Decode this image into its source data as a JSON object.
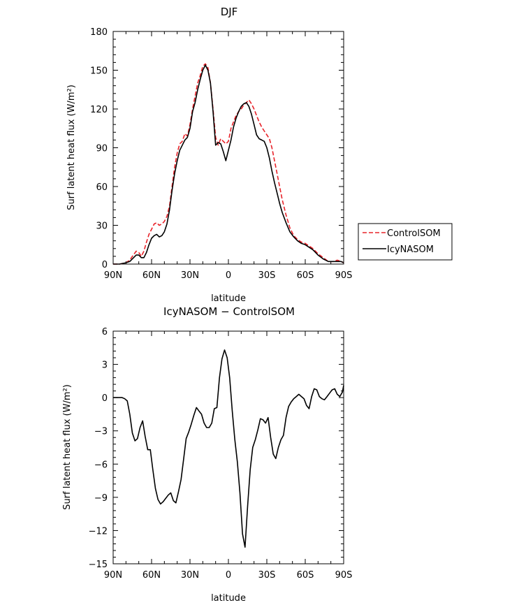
{
  "chart_data": [
    {
      "type": "line",
      "title": "DJF",
      "xlabel": "latitude",
      "ylabel": "Surf latent heat flux (W/m²)",
      "xlim": [
        90,
        -90
      ],
      "ylim": [
        0,
        180
      ],
      "xticks": [
        90,
        60,
        30,
        0,
        -30,
        -60,
        -90
      ],
      "xtick_labels": [
        "90N",
        "60N",
        "30N",
        "0",
        "30S",
        "60S",
        "90S"
      ],
      "yticks": [
        0,
        30,
        60,
        90,
        120,
        150,
        180
      ],
      "ytick_labels": [
        "0",
        "30",
        "60",
        "90",
        "120",
        "150",
        "180"
      ],
      "legend": {
        "position": "right",
        "entries": [
          "ControlSOM",
          "IcyNASOM"
        ]
      },
      "series": [
        {
          "name": "ControlSOM",
          "color": "#e8232a",
          "dash": "dashed",
          "x": [
            90,
            85,
            80,
            77,
            75,
            72,
            70,
            68,
            66,
            64,
            62,
            60,
            58,
            56,
            54,
            52,
            50,
            48,
            46,
            44,
            42,
            40,
            38,
            36,
            34,
            32,
            30,
            28,
            26,
            24,
            22,
            20,
            18,
            16,
            14,
            12,
            10,
            8,
            6,
            4,
            2,
            0,
            -2,
            -4,
            -6,
            -8,
            -10,
            -12,
            -14,
            -16,
            -18,
            -20,
            -22,
            -24,
            -26,
            -28,
            -30,
            -32,
            -34,
            -36,
            -38,
            -40,
            -42,
            -45,
            -48,
            -51,
            -54,
            -57,
            -60,
            -63,
            -66,
            -70,
            -74,
            -78,
            -82,
            -85,
            -88,
            -90
          ],
          "y": [
            0,
            0,
            1,
            3,
            6,
            10,
            9,
            6,
            10,
            17,
            23,
            27,
            31,
            32,
            30,
            31,
            33,
            37,
            45,
            60,
            75,
            86,
            93,
            95,
            101,
            99,
            108,
            120,
            130,
            140,
            146,
            153,
            155,
            152,
            140,
            120,
            98,
            92,
            97,
            95,
            93,
            95,
            105,
            110,
            115,
            118,
            120,
            123,
            125,
            127,
            124,
            120,
            115,
            110,
            106,
            103,
            100,
            97,
            90,
            80,
            70,
            60,
            50,
            38,
            28,
            22,
            19,
            17,
            16,
            14,
            12,
            8,
            5,
            2,
            2,
            3,
            2,
            1
          ]
        },
        {
          "name": "IcyNASOM",
          "color": "#000000",
          "dash": "solid",
          "x": [
            90,
            85,
            80,
            77,
            75,
            72,
            70,
            68,
            66,
            64,
            62,
            60,
            58,
            56,
            54,
            52,
            50,
            48,
            46,
            44,
            42,
            40,
            38,
            36,
            34,
            32,
            30,
            28,
            26,
            24,
            22,
            20,
            18,
            16,
            14,
            12,
            10,
            8,
            6,
            4,
            2,
            0,
            -2,
            -4,
            -6,
            -8,
            -10,
            -12,
            -14,
            -16,
            -18,
            -20,
            -22,
            -24,
            -26,
            -28,
            -30,
            -32,
            -34,
            -36,
            -38,
            -40,
            -42,
            -45,
            -48,
            -51,
            -54,
            -57,
            -60,
            -63,
            -66,
            -70,
            -74,
            -78,
            -82,
            -85,
            -88,
            -90
          ],
          "y": [
            0,
            0,
            1,
            2,
            4,
            7,
            7,
            5,
            5,
            9,
            15,
            20,
            22,
            23,
            21,
            22,
            25,
            31,
            42,
            57,
            70,
            80,
            88,
            92,
            96,
            98,
            105,
            118,
            125,
            135,
            143,
            150,
            154,
            150,
            140,
            118,
            92,
            94,
            93,
            87,
            80,
            88,
            96,
            106,
            113,
            118,
            122,
            124,
            125,
            122,
            116,
            108,
            100,
            97,
            96,
            95,
            90,
            82,
            72,
            63,
            55,
            47,
            40,
            32,
            25,
            21,
            18,
            16,
            15,
            13,
            11,
            7,
            4,
            2,
            2,
            2,
            2,
            1
          ]
        }
      ]
    },
    {
      "type": "line",
      "title": "IcyNASOM − ControlSOM",
      "xlabel": "latitude",
      "ylabel": "Surf latent heat flux (W/m²)",
      "xlim": [
        90,
        -90
      ],
      "ylim": [
        -15,
        6
      ],
      "xticks": [
        90,
        60,
        30,
        0,
        -30,
        -60,
        -90
      ],
      "xtick_labels": [
        "90N",
        "60N",
        "30N",
        "0",
        "30S",
        "60S",
        "90S"
      ],
      "yticks": [
        -15,
        -12,
        -9,
        -6,
        -3,
        0,
        3,
        6
      ],
      "ytick_labels": [
        "−15",
        "−12",
        "−9",
        "−6",
        "−3",
        "0",
        "3",
        "6"
      ],
      "series": [
        {
          "color": "#000000",
          "dash": "solid",
          "x": [
            90,
            86,
            83,
            81,
            79,
            77,
            75,
            73,
            71,
            69,
            67,
            65,
            63,
            61,
            59,
            57,
            55,
            53,
            51,
            49,
            47,
            45,
            43,
            41,
            39,
            37,
            35,
            33,
            31,
            29,
            27,
            25,
            23,
            21,
            19,
            17,
            15,
            13,
            11,
            9,
            7,
            5,
            3,
            1,
            -1,
            -3,
            -5,
            -7,
            -9,
            -11,
            -13,
            -15,
            -17,
            -19,
            -21,
            -23,
            -25,
            -27,
            -29,
            -31,
            -33,
            -35,
            -37,
            -39,
            -41,
            -43,
            -45,
            -47,
            -49,
            -51,
            -53,
            -55,
            -57,
            -59,
            -61,
            -63,
            -65,
            -67,
            -69,
            -71,
            -73,
            -75,
            -77,
            -79,
            -81,
            -83,
            -85,
            -87,
            -89,
            -90
          ],
          "y": [
            0,
            0,
            0,
            -0.1,
            -0.3,
            -1.5,
            -3.2,
            -3.9,
            -3.7,
            -2.7,
            -2.1,
            -3.5,
            -4.7,
            -4.7,
            -6.5,
            -8.2,
            -9.2,
            -9.6,
            -9.4,
            -9.1,
            -8.8,
            -8.6,
            -9.3,
            -9.5,
            -8.5,
            -7.4,
            -5.6,
            -3.7,
            -3.1,
            -2.4,
            -1.6,
            -0.9,
            -1.2,
            -1.5,
            -2.3,
            -2.7,
            -2.7,
            -2.3,
            -1.0,
            -0.9,
            1.8,
            3.5,
            4.3,
            3.6,
            1.8,
            -1.2,
            -3.8,
            -5.8,
            -8.6,
            -12.3,
            -13.5,
            -9.8,
            -6.5,
            -4.5,
            -3.8,
            -2.9,
            -1.9,
            -2.0,
            -2.3,
            -1.8,
            -3.6,
            -5.1,
            -5.5,
            -4.5,
            -3.8,
            -3.4,
            -1.8,
            -0.8,
            -0.4,
            -0.1,
            0.1,
            0.3,
            0.1,
            -0.1,
            -0.7,
            -1.0,
            0.1,
            0.8,
            0.7,
            0.1,
            -0.1,
            -0.2,
            0.1,
            0.4,
            0.7,
            0.8,
            0.3,
            0.1,
            0.5,
            1.1
          ]
        }
      ]
    }
  ]
}
